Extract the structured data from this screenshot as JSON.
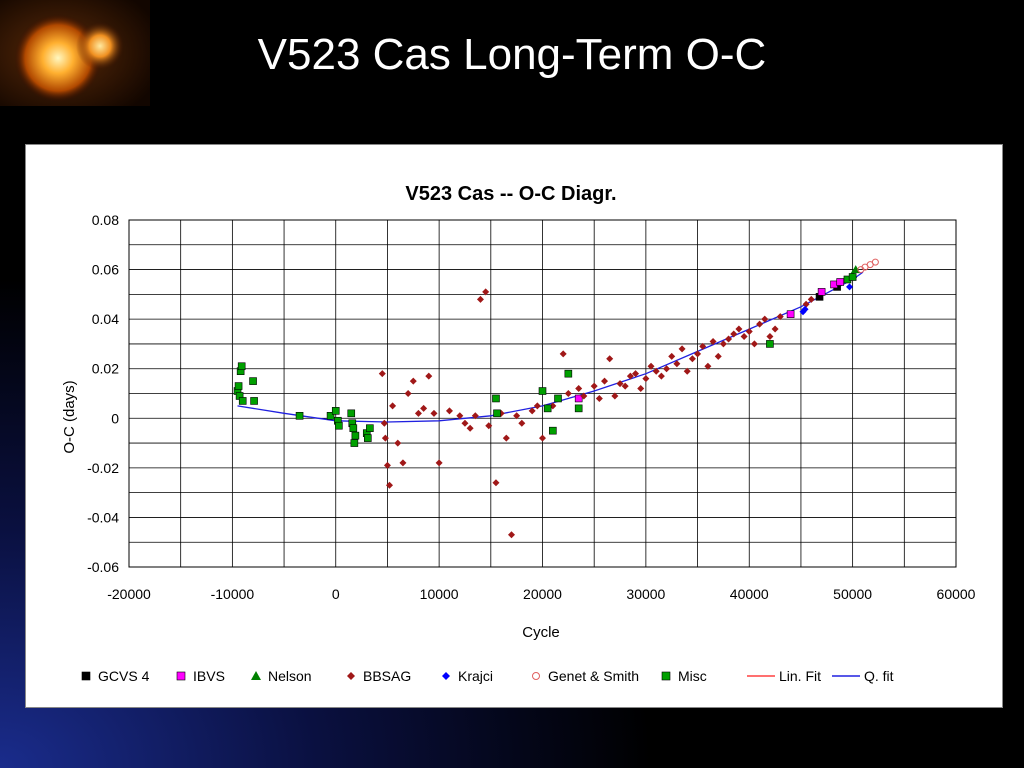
{
  "slide": {
    "title": "V523 Cas Long-Term O-C"
  },
  "chart_data": {
    "type": "scatter",
    "title": "V523 Cas -- O-C Diagr.",
    "xlabel": "Cycle",
    "ylabel": "O-C   (days)",
    "xlim": [
      -20000,
      60000
    ],
    "ylim": [
      -0.06,
      0.08
    ],
    "x_ticks": [
      -20000,
      -10000,
      0,
      10000,
      20000,
      30000,
      40000,
      50000,
      60000
    ],
    "y_ticks": [
      -0.06,
      -0.04,
      -0.02,
      0,
      0.02,
      0.04,
      0.06,
      0.08
    ],
    "grid": true,
    "legend_position": "bottom",
    "series": [
      {
        "name": "GCVS 4",
        "marker": "square",
        "color": "#000000",
        "points": [
          [
            46800,
            0.049
          ],
          [
            48500,
            0.053
          ]
        ]
      },
      {
        "name": "IBVS",
        "marker": "square",
        "color": "#ff00ff",
        "points": [
          [
            23500,
            0.008
          ],
          [
            44000,
            0.042
          ],
          [
            47000,
            0.051
          ],
          [
            48200,
            0.054
          ],
          [
            48800,
            0.055
          ]
        ]
      },
      {
        "name": "Nelson",
        "marker": "triangle",
        "color": "#008000",
        "points": [
          [
            50000,
            0.058
          ],
          [
            50300,
            0.06
          ]
        ]
      },
      {
        "name": "BBSAG",
        "marker": "diamond",
        "color": "#a01818",
        "points": [
          [
            4500,
            0.018
          ],
          [
            4700,
            -0.002
          ],
          [
            4800,
            -0.008
          ],
          [
            5000,
            -0.019
          ],
          [
            5200,
            -0.027
          ],
          [
            5500,
            0.005
          ],
          [
            6000,
            -0.01
          ],
          [
            6500,
            -0.018
          ],
          [
            7000,
            0.01
          ],
          [
            7500,
            0.015
          ],
          [
            8000,
            0.002
          ],
          [
            8500,
            0.004
          ],
          [
            9000,
            0.017
          ],
          [
            9500,
            0.002
          ],
          [
            10000,
            -0.018
          ],
          [
            11000,
            0.003
          ],
          [
            12000,
            0.001
          ],
          [
            12500,
            -0.002
          ],
          [
            13000,
            -0.004
          ],
          [
            13500,
            0.001
          ],
          [
            14000,
            0.048
          ],
          [
            14500,
            0.051
          ],
          [
            14800,
            -0.003
          ],
          [
            15500,
            -0.026
          ],
          [
            16000,
            0.002
          ],
          [
            16500,
            -0.008
          ],
          [
            17000,
            -0.047
          ],
          [
            17500,
            0.001
          ],
          [
            18000,
            -0.002
          ],
          [
            19000,
            0.003
          ],
          [
            19500,
            0.005
          ],
          [
            20000,
            -0.008
          ],
          [
            21000,
            0.005
          ],
          [
            22000,
            0.026
          ],
          [
            22500,
            0.01
          ],
          [
            23500,
            0.012
          ],
          [
            24000,
            0.009
          ],
          [
            25000,
            0.013
          ],
          [
            25500,
            0.008
          ],
          [
            26000,
            0.015
          ],
          [
            26500,
            0.024
          ],
          [
            27000,
            0.009
          ],
          [
            27500,
            0.014
          ],
          [
            28000,
            0.013
          ],
          [
            28500,
            0.017
          ],
          [
            29000,
            0.018
          ],
          [
            29500,
            0.012
          ],
          [
            30000,
            0.016
          ],
          [
            30500,
            0.021
          ],
          [
            31000,
            0.019
          ],
          [
            31500,
            0.017
          ],
          [
            32000,
            0.02
          ],
          [
            32500,
            0.025
          ],
          [
            33000,
            0.022
          ],
          [
            33500,
            0.028
          ],
          [
            34000,
            0.019
          ],
          [
            34500,
            0.024
          ],
          [
            35000,
            0.026
          ],
          [
            35500,
            0.029
          ],
          [
            36000,
            0.021
          ],
          [
            36500,
            0.031
          ],
          [
            37000,
            0.025
          ],
          [
            37500,
            0.03
          ],
          [
            38000,
            0.032
          ],
          [
            38500,
            0.034
          ],
          [
            39000,
            0.036
          ],
          [
            39500,
            0.033
          ],
          [
            40000,
            0.035
          ],
          [
            40500,
            0.03
          ],
          [
            41000,
            0.038
          ],
          [
            41500,
            0.04
          ],
          [
            42000,
            0.033
          ],
          [
            42500,
            0.036
          ],
          [
            43000,
            0.041
          ],
          [
            45500,
            0.046
          ],
          [
            46000,
            0.048
          ]
        ]
      },
      {
        "name": "Krajci",
        "marker": "diamond",
        "color": "#0000ff",
        "points": [
          [
            45200,
            0.043
          ],
          [
            45400,
            0.044
          ],
          [
            49700,
            0.053
          ]
        ]
      },
      {
        "name": "Genet & Smith",
        "marker": "circle-open",
        "color": "#e06060",
        "points": [
          [
            50800,
            0.06
          ],
          [
            51200,
            0.061
          ],
          [
            51700,
            0.062
          ],
          [
            52200,
            0.063
          ]
        ]
      },
      {
        "name": "Misc",
        "marker": "square",
        "color": "#00a000",
        "points": [
          [
            -9500,
            0.011
          ],
          [
            -9400,
            0.013
          ],
          [
            -9300,
            0.009
          ],
          [
            -9200,
            0.019
          ],
          [
            -9100,
            0.021
          ],
          [
            -9000,
            0.007
          ],
          [
            -8000,
            0.015
          ],
          [
            -7900,
            0.007
          ],
          [
            -3500,
            0.001
          ],
          [
            -500,
            0.001
          ],
          [
            0,
            0.003
          ],
          [
            200,
            -0.001
          ],
          [
            300,
            -0.003
          ],
          [
            1500,
            0.002
          ],
          [
            1600,
            -0.002
          ],
          [
            1700,
            -0.004
          ],
          [
            1800,
            -0.01
          ],
          [
            1900,
            -0.007
          ],
          [
            3000,
            -0.006
          ],
          [
            3100,
            -0.008
          ],
          [
            3300,
            -0.004
          ],
          [
            15500,
            0.008
          ],
          [
            15600,
            0.002
          ],
          [
            20000,
            0.011
          ],
          [
            20500,
            0.004
          ],
          [
            21000,
            -0.005
          ],
          [
            21500,
            0.008
          ],
          [
            22500,
            0.018
          ],
          [
            23500,
            0.004
          ],
          [
            42000,
            0.03
          ],
          [
            49500,
            0.056
          ],
          [
            50000,
            0.057
          ]
        ]
      },
      {
        "name": "Lin. Fit",
        "marker": "line",
        "color": "#ff4040",
        "points": []
      },
      {
        "name": "Q. fit",
        "marker": "line",
        "color": "#2020e0",
        "curve": [
          [
            -9500,
            0.005
          ],
          [
            -5000,
            0.002
          ],
          [
            0,
            -0.001
          ],
          [
            5000,
            -0.0015
          ],
          [
            10000,
            -0.001
          ],
          [
            15000,
            0.001
          ],
          [
            20000,
            0.005
          ],
          [
            25000,
            0.011
          ],
          [
            30000,
            0.018
          ],
          [
            35000,
            0.027
          ],
          [
            40000,
            0.036
          ],
          [
            45000,
            0.045
          ],
          [
            50000,
            0.056
          ],
          [
            51000,
            0.059
          ]
        ]
      }
    ]
  }
}
